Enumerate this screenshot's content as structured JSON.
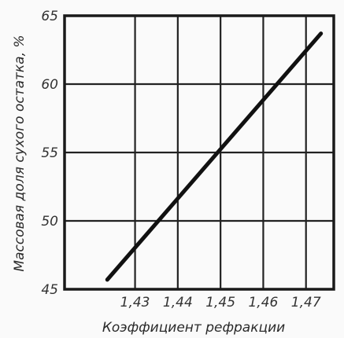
{
  "chart_data": {
    "type": "line",
    "xlabel": "Коэффициент рефракции",
    "ylabel": "Массовая доля сухого остатка, %",
    "x_tick_labels": [
      "1,43",
      "1,44",
      "1,45",
      "1,46",
      "1,47"
    ],
    "x_ticks": [
      1.43,
      1.44,
      1.45,
      1.46,
      1.47
    ],
    "y_tick_labels": [
      "45",
      "50",
      "55",
      "60",
      "65"
    ],
    "y_ticks": [
      45,
      50,
      55,
      60,
      65
    ],
    "xlim": [
      1.4135,
      1.4765
    ],
    "ylim": [
      45,
      65
    ],
    "grid": true,
    "series": [
      {
        "x": [
          1.4235,
          1.4735
        ],
        "y": [
          45.7,
          63.7
        ]
      }
    ]
  }
}
